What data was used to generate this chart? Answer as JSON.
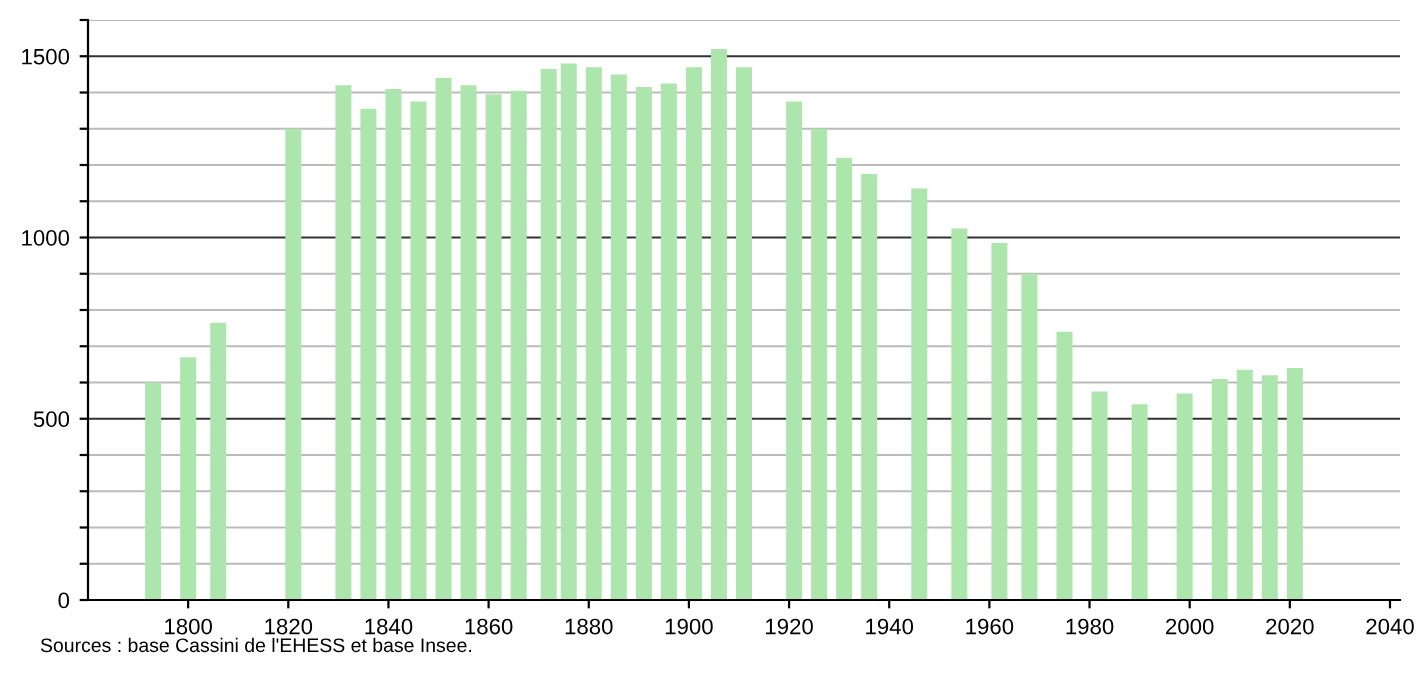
{
  "chart_data": {
    "type": "bar",
    "x": [
      1793,
      1800,
      1806,
      1821,
      1831,
      1836,
      1841,
      1846,
      1851,
      1856,
      1861,
      1866,
      1872,
      1876,
      1881,
      1886,
      1891,
      1896,
      1901,
      1906,
      1911,
      1921,
      1926,
      1931,
      1936,
      1946,
      1954,
      1962,
      1968,
      1975,
      1982,
      1990,
      1999,
      2006,
      2011,
      2016,
      2021
    ],
    "values": [
      600,
      670,
      765,
      1300,
      1420,
      1355,
      1410,
      1375,
      1440,
      1420,
      1395,
      1405,
      1465,
      1480,
      1470,
      1450,
      1415,
      1425,
      1470,
      1520,
      1470,
      1375,
      1300,
      1220,
      1175,
      1135,
      1025,
      985,
      900,
      740,
      575,
      540,
      570,
      610,
      635,
      620,
      640
    ],
    "color": "#ade6ad",
    "xlim": [
      1780,
      2042
    ],
    "xticks": [
      1800,
      1820,
      1840,
      1860,
      1880,
      1900,
      1920,
      1940,
      1960,
      1980,
      2000,
      2020,
      2040
    ],
    "ylim": [
      0,
      1600
    ],
    "yticks": [
      0,
      {
        "value": 100,
        "label": null
      },
      {
        "value": 200,
        "label": null
      },
      {
        "value": 300,
        "label": null
      },
      {
        "value": 400,
        "label": null
      },
      500,
      {
        "value": 600,
        "label": null
      },
      {
        "value": 700,
        "label": null
      },
      {
        "value": 800,
        "label": null
      },
      {
        "value": 900,
        "label": null
      },
      1000,
      {
        "value": 1100,
        "label": null
      },
      {
        "value": 1200,
        "label": null
      },
      {
        "value": 1300,
        "label": null
      },
      {
        "value": 1400,
        "label": null
      },
      1500,
      {
        "value": 1600,
        "label": null
      }
    ],
    "grid": "y",
    "annotations": [
      "Sources : base Cassini de l'EHESS et base Insee."
    ]
  }
}
